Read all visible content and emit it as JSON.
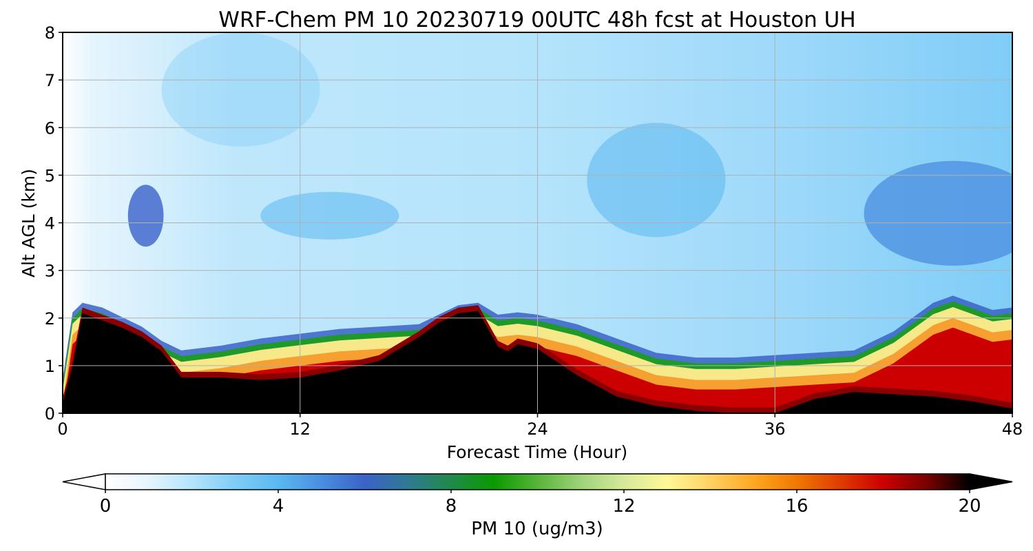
{
  "chart_data": {
    "type": "heatmap",
    "title": "WRF-Chem PM 10  20230719 00UTC 48h fcst at Houston UH",
    "xlabel": "Forecast Time (Hour)",
    "ylabel": "Alt AGL (km)",
    "xlim": [
      0,
      48
    ],
    "ylim": [
      0,
      8
    ],
    "xticks": [
      0,
      12,
      24,
      36,
      48
    ],
    "yticks": [
      0,
      1,
      2,
      3,
      4,
      5,
      6,
      7,
      8
    ],
    "grid": true,
    "colorbar": {
      "label": "PM 10  (ug/m3)",
      "range": [
        0,
        20
      ],
      "ticks": [
        0,
        4,
        8,
        12,
        16,
        20
      ],
      "extend": "both",
      "orientation": "horizontal",
      "placement": "bottom",
      "colors": [
        "#ffffff",
        "#e6f5fd",
        "#b4e4fb",
        "#7fcdf7",
        "#5bb8f0",
        "#4a8ee0",
        "#3a62c8",
        "#2f7a92",
        "#1f8a4a",
        "#0a9a00",
        "#58b43a",
        "#9fd27a",
        "#d6ea9a",
        "#fff896",
        "#ffd262",
        "#ffa820",
        "#f07800",
        "#e03c00",
        "#cc0000",
        "#7a0000",
        "#000000"
      ]
    },
    "boundary_layer_top_km": {
      "x": [
        0,
        0.5,
        1,
        2,
        3,
        4,
        5,
        6,
        8,
        10,
        12,
        14,
        16,
        18,
        19,
        20,
        21,
        22,
        23,
        24,
        26,
        28,
        30,
        32,
        34,
        36,
        38,
        40,
        42,
        44,
        45,
        46,
        47,
        48
      ],
      "y": [
        0.6,
        2.0,
        2.2,
        2.1,
        1.9,
        1.7,
        1.4,
        1.2,
        1.3,
        1.45,
        1.55,
        1.65,
        1.7,
        1.75,
        1.95,
        2.15,
        2.2,
        1.95,
        2.0,
        1.95,
        1.75,
        1.45,
        1.15,
        1.05,
        1.05,
        1.1,
        1.15,
        1.2,
        1.6,
        2.2,
        2.35,
        2.2,
        2.05,
        2.1
      ]
    },
    "max_value_core_top_km": {
      "x": [
        0,
        0.5,
        1,
        2,
        3,
        4,
        5,
        6,
        8,
        10,
        12,
        14,
        16,
        18,
        19,
        20,
        21,
        22,
        22.5,
        23,
        24,
        26,
        28,
        30,
        32,
        34,
        36,
        38,
        40,
        42,
        44,
        46,
        48
      ],
      "y": [
        0.2,
        1.0,
        2.1,
        1.95,
        1.8,
        1.6,
        1.3,
        0.75,
        0.75,
        0.7,
        0.75,
        0.9,
        1.1,
        1.6,
        1.9,
        2.1,
        2.15,
        1.4,
        1.3,
        1.45,
        1.35,
        0.8,
        0.35,
        0.15,
        0.05,
        0.0,
        0.0,
        0.3,
        0.45,
        0.4,
        0.35,
        0.25,
        0.1
      ]
    }
  }
}
